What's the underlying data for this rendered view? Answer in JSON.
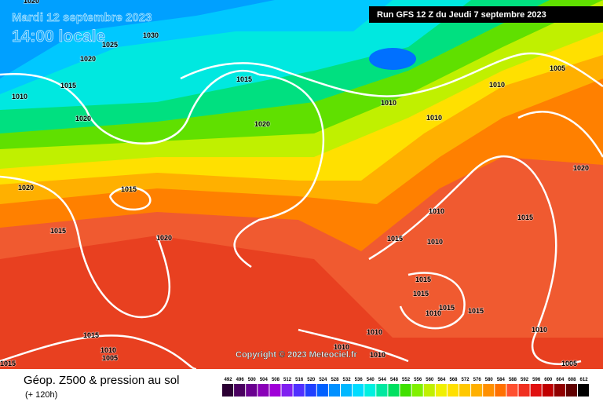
{
  "header": {
    "valid_date": "Mardi 12 septembre 2023",
    "local_time": "14:00 locale",
    "run": "Run GFS 12 Z du Jeudi 7 septembre 2023"
  },
  "copyright": "Copyright © 2023 Meteociel.fr",
  "footer": {
    "title": "Géop. Z500 & pression au sol",
    "lead": "(+ 120h)"
  },
  "legend": {
    "labels": [
      492,
      496,
      500,
      504,
      508,
      512,
      516,
      520,
      524,
      528,
      532,
      536,
      540,
      544,
      548,
      552,
      556,
      560,
      564,
      568,
      572,
      576,
      580,
      584,
      588,
      592,
      596,
      600,
      604,
      608,
      612
    ],
    "colors": [
      "#2b0033",
      "#4a0060",
      "#6a0090",
      "#8a00b8",
      "#a000d8",
      "#8020f0",
      "#5030ff",
      "#2040ff",
      "#0060ff",
      "#0090ff",
      "#00b8ff",
      "#00dcff",
      "#00f0e0",
      "#00e8a0",
      "#00e060",
      "#40e000",
      "#80f000",
      "#c0f000",
      "#f0f000",
      "#ffe000",
      "#ffc800",
      "#ffb000",
      "#ff9000",
      "#ff7000",
      "#ff5030",
      "#f03020",
      "#e01010",
      "#c00000",
      "#900000",
      "#600000",
      "#000000"
    ]
  },
  "isobar_labels": [
    1020,
    1030,
    1025,
    1020,
    1015,
    1010,
    1020,
    1020,
    1015,
    1010,
    1010,
    1005,
    1010,
    1020,
    1020,
    1015,
    1015,
    1020,
    1010,
    1015,
    1015,
    1010,
    1015,
    1015,
    1015,
    1015,
    1010,
    1010,
    1010,
    1015,
    1010,
    1005,
    1010,
    1010,
    1015,
    1005
  ]
}
